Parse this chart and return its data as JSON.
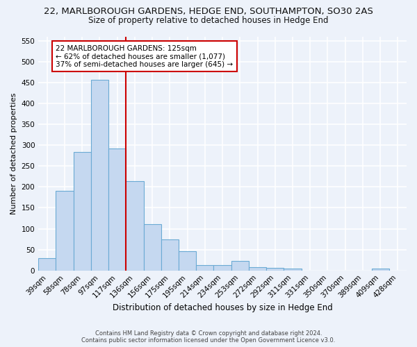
{
  "title1": "22, MARLBOROUGH GARDENS, HEDGE END, SOUTHAMPTON, SO30 2AS",
  "title2": "Size of property relative to detached houses in Hedge End",
  "xlabel": "Distribution of detached houses by size in Hedge End",
  "ylabel": "Number of detached properties",
  "categories": [
    "39sqm",
    "58sqm",
    "78sqm",
    "97sqm",
    "117sqm",
    "136sqm",
    "156sqm",
    "175sqm",
    "195sqm",
    "214sqm",
    "234sqm",
    "253sqm",
    "272sqm",
    "292sqm",
    "311sqm",
    "331sqm",
    "350sqm",
    "370sqm",
    "389sqm",
    "409sqm",
    "428sqm"
  ],
  "values": [
    30,
    190,
    284,
    457,
    292,
    213,
    110,
    74,
    46,
    13,
    12,
    22,
    8,
    6,
    5,
    0,
    0,
    0,
    0,
    5,
    0
  ],
  "bar_color": "#c5d8f0",
  "bar_edge_color": "#6aaad4",
  "property_line_x": 4.5,
  "annotation_line1": "22 MARLBOROUGH GARDENS: 125sqm",
  "annotation_line2": "← 62% of detached houses are smaller (1,077)",
  "annotation_line3": "37% of semi-detached houses are larger (645) →",
  "annotation_box_color": "#ffffff",
  "annotation_box_edge": "#cc0000",
  "vline_color": "#cc0000",
  "ylim": [
    0,
    560
  ],
  "yticks": [
    0,
    50,
    100,
    150,
    200,
    250,
    300,
    350,
    400,
    450,
    500,
    550
  ],
  "footer1": "Contains HM Land Registry data © Crown copyright and database right 2024.",
  "footer2": "Contains public sector information licensed under the Open Government Licence v3.0.",
  "background_color": "#edf2fa",
  "grid_color": "#ffffff",
  "title1_fontsize": 9.5,
  "title2_fontsize": 8.5,
  "xlabel_fontsize": 8.5,
  "ylabel_fontsize": 8,
  "tick_fontsize": 7.5,
  "footer_fontsize": 6,
  "annot_fontsize": 7.5
}
